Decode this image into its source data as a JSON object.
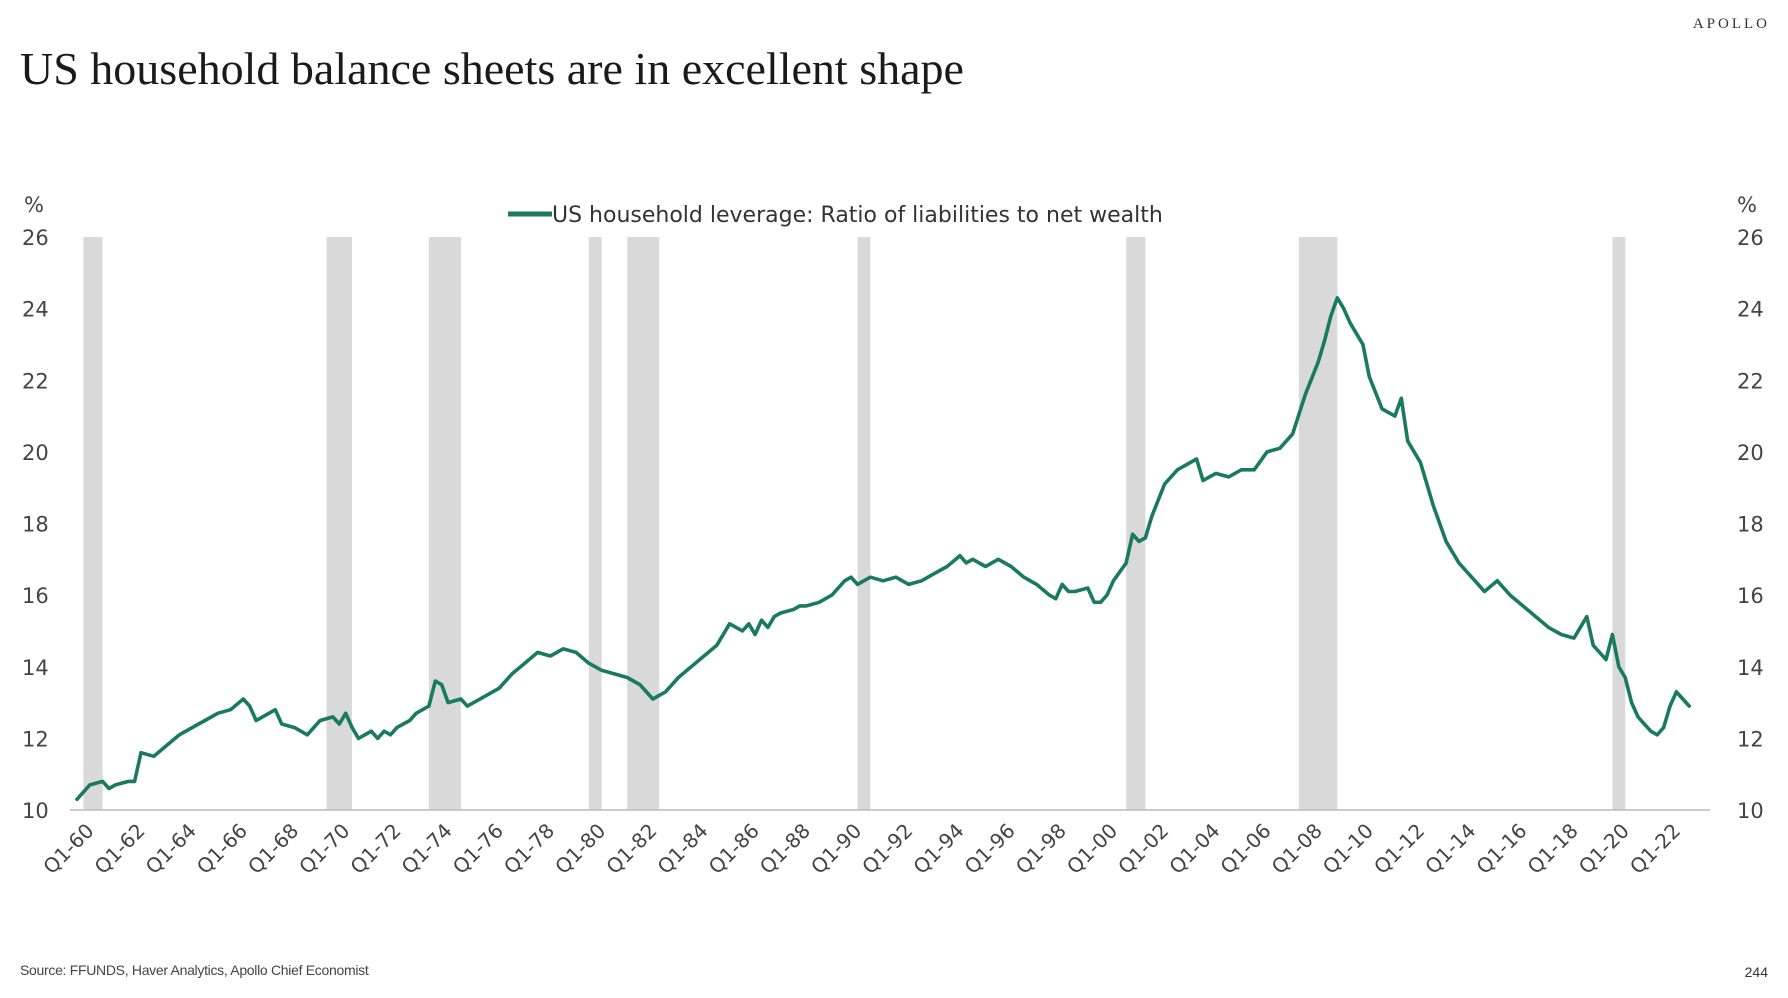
{
  "header": {
    "brand": "APOLLO",
    "title": "US household balance sheets are in excellent shape"
  },
  "footer": {
    "source": "Source: FFUNDS, Haver Analytics, Apollo Chief Economist",
    "page_number": "244"
  },
  "chart_data": {
    "type": "line",
    "title": "US household balance sheets are in excellent shape",
    "ylabel_left": "%",
    "ylabel_right": "%",
    "ylim": [
      10,
      26
    ],
    "yticks": [
      10,
      12,
      14,
      16,
      18,
      20,
      22,
      24,
      26
    ],
    "xlim": [
      1960.0,
      2023.5
    ],
    "xtick_labels": [
      "Q1-60",
      "Q1-62",
      "Q1-64",
      "Q1-66",
      "Q1-68",
      "Q1-70",
      "Q1-72",
      "Q1-74",
      "Q1-76",
      "Q1-78",
      "Q1-80",
      "Q1-82",
      "Q1-84",
      "Q1-86",
      "Q1-88",
      "Q1-90",
      "Q1-92",
      "Q1-94",
      "Q1-96",
      "Q1-98",
      "Q1-00",
      "Q1-02",
      "Q1-04",
      "Q1-06",
      "Q1-08",
      "Q1-10",
      "Q1-12",
      "Q1-14",
      "Q1-16",
      "Q1-18",
      "Q1-20",
      "Q1-22"
    ],
    "legend": "US household leverage: Ratio of liabilities to net wealth",
    "line_color": "#1a7a5e",
    "recession_color": "#d9d9d9",
    "recessions": [
      [
        1960.25,
        1961.0
      ],
      [
        1969.75,
        1970.75
      ],
      [
        1973.75,
        1975.0
      ],
      [
        1980.0,
        1980.5
      ],
      [
        1981.5,
        1982.75
      ],
      [
        1990.5,
        1991.0
      ],
      [
        2001.0,
        2001.75
      ],
      [
        2007.75,
        2009.25
      ],
      [
        2020.0,
        2020.5
      ]
    ],
    "series": [
      {
        "name": "US household leverage: Ratio of liabilities to net wealth",
        "x": [
          1960.0,
          1960.5,
          1961.0,
          1961.25,
          1961.5,
          1962.0,
          1962.25,
          1962.5,
          1963.0,
          1963.5,
          1964.0,
          1964.25,
          1964.75,
          1965.0,
          1965.5,
          1966.0,
          1966.5,
          1966.75,
          1967.0,
          1967.25,
          1967.75,
          1968.0,
          1968.5,
          1969.0,
          1969.5,
          1970.0,
          1970.25,
          1970.5,
          1970.75,
          1971.0,
          1971.5,
          1971.75,
          1972.0,
          1972.25,
          1972.5,
          1973.0,
          1973.25,
          1973.75,
          1974.0,
          1974.25,
          1974.5,
          1975.0,
          1975.25,
          1975.5,
          1976.0,
          1976.5,
          1977.0,
          1977.5,
          1978.0,
          1978.5,
          1979.0,
          1979.5,
          1980.0,
          1980.5,
          1981.0,
          1981.5,
          1982.0,
          1982.5,
          1983.0,
          1983.5,
          1984.0,
          1984.5,
          1985.0,
          1985.5,
          1986.0,
          1986.25,
          1986.5,
          1986.75,
          1987.0,
          1987.25,
          1987.5,
          1988.0,
          1988.25,
          1988.5,
          1989.0,
          1989.5,
          1990.0,
          1990.25,
          1990.5,
          1990.75,
          1991.0,
          1991.5,
          1992.0,
          1992.5,
          1993.0,
          1993.5,
          1994.0,
          1994.5,
          1994.75,
          1995.0,
          1995.5,
          1996.0,
          1996.5,
          1997.0,
          1997.5,
          1998.0,
          1998.25,
          1998.5,
          1998.75,
          1999.0,
          1999.5,
          1999.75,
          2000.0,
          2000.25,
          2000.5,
          2001.0,
          2001.25,
          2001.5,
          2001.75,
          2002.0,
          2002.5,
          2003.0,
          2003.25,
          2003.75,
          2004.0,
          2004.5,
          2005.0,
          2005.5,
          2006.0,
          2006.5,
          2007.0,
          2007.5,
          2008.0,
          2008.5,
          2008.75,
          2009.0,
          2009.25,
          2009.5,
          2009.75,
          2010.0,
          2010.25,
          2010.5,
          2011.0,
          2011.5,
          2011.75,
          2012.0,
          2012.5,
          2013.0,
          2013.5,
          2014.0,
          2014.5,
          2015.0,
          2015.5,
          2016.0,
          2016.5,
          2017.0,
          2017.5,
          2018.0,
          2018.5,
          2019.0,
          2019.25,
          2019.5,
          2019.75,
          2020.0,
          2020.25,
          2020.5,
          2020.75,
          2021.0,
          2021.5,
          2021.75,
          2022.0,
          2022.25,
          2022.5,
          2022.75,
          2023.0
        ],
        "values": [
          10.3,
          10.7,
          10.8,
          10.6,
          10.7,
          10.8,
          10.8,
          11.6,
          11.5,
          11.8,
          12.1,
          12.2,
          12.4,
          12.5,
          12.7,
          12.8,
          13.1,
          12.9,
          12.5,
          12.6,
          12.8,
          12.4,
          12.3,
          12.1,
          12.5,
          12.6,
          12.4,
          12.7,
          12.3,
          12.0,
          12.2,
          12.0,
          12.2,
          12.1,
          12.3,
          12.5,
          12.7,
          12.9,
          13.6,
          13.5,
          13.0,
          13.1,
          12.9,
          13.0,
          13.2,
          13.4,
          13.8,
          14.1,
          14.4,
          14.3,
          14.5,
          14.4,
          14.1,
          13.9,
          13.8,
          13.7,
          13.5,
          13.1,
          13.3,
          13.7,
          14.0,
          14.3,
          14.6,
          15.2,
          15.0,
          15.2,
          14.9,
          15.3,
          15.1,
          15.4,
          15.5,
          15.6,
          15.7,
          15.7,
          15.8,
          16.0,
          16.4,
          16.5,
          16.3,
          16.4,
          16.5,
          16.4,
          16.5,
          16.3,
          16.4,
          16.6,
          16.8,
          17.1,
          16.9,
          17.0,
          16.8,
          17.0,
          16.8,
          16.5,
          16.3,
          16.0,
          15.9,
          16.3,
          16.1,
          16.1,
          16.2,
          15.8,
          15.8,
          16.0,
          16.4,
          16.9,
          17.7,
          17.5,
          17.6,
          18.2,
          19.1,
          19.5,
          19.6,
          19.8,
          19.2,
          19.4,
          19.3,
          19.5,
          19.5,
          20.0,
          20.1,
          20.5,
          21.6,
          22.5,
          23.1,
          23.8,
          24.3,
          24.0,
          23.6,
          23.3,
          23.0,
          22.1,
          21.2,
          21.0,
          21.5,
          20.3,
          19.7,
          18.5,
          17.5,
          16.9,
          16.5,
          16.1,
          16.4,
          16.0,
          15.7,
          15.4,
          15.1,
          14.9,
          14.8,
          15.4,
          14.6,
          14.4,
          14.2,
          14.9,
          14.0,
          13.7,
          13.0,
          12.6,
          12.2,
          12.1,
          12.3,
          12.9,
          13.3,
          13.1,
          12.9
        ]
      }
    ]
  }
}
